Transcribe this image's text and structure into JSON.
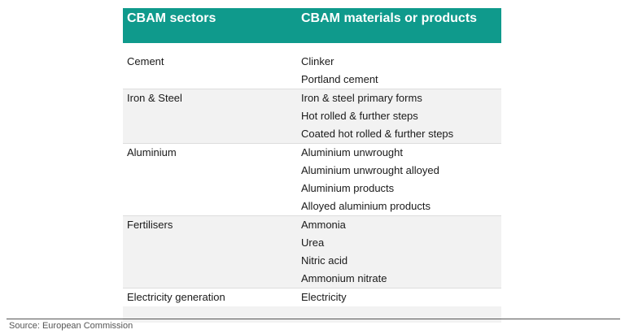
{
  "table": {
    "header": {
      "sectors_label": "CBAM sectors",
      "materials_label": "CBAM materials or products"
    },
    "rows": [
      {
        "sector": "Cement",
        "products": [
          "Clinker",
          "Portland cement"
        ]
      },
      {
        "sector": "Iron & Steel",
        "products": [
          "Iron & steel primary forms",
          "Hot rolled & further steps",
          "Coated hot rolled & further steps"
        ]
      },
      {
        "sector": "Aluminium",
        "products": [
          "Aluminium unwrought",
          "Aluminium unwrought alloyed",
          "Aluminium products",
          "Alloyed aluminium products"
        ]
      },
      {
        "sector": "Fertilisers",
        "products": [
          "Ammonia",
          "Urea",
          "Nitric acid",
          "Ammonium nitrate"
        ]
      },
      {
        "sector": "Electricity generation",
        "products": [
          "Electricity"
        ]
      }
    ]
  },
  "source": "Source: European Commission",
  "colors": {
    "header_bg": "#0f9a8c",
    "row_shade": "#f2f2f2"
  }
}
